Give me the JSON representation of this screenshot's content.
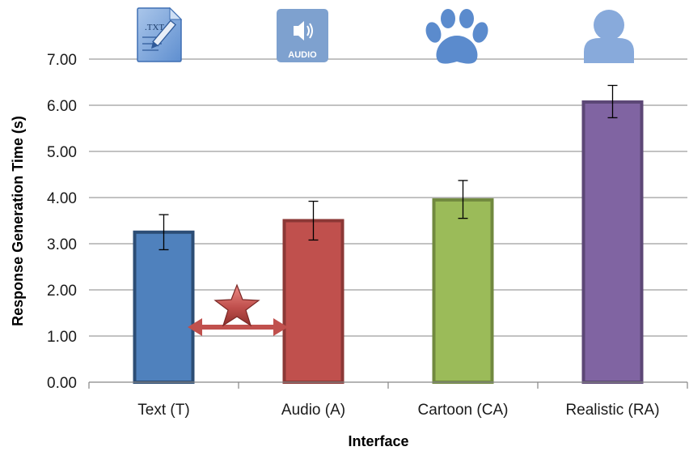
{
  "chart_data": {
    "type": "bar",
    "xlabel": "Interface",
    "ylabel": "Response Generation Time (s)",
    "ylim": [
      0,
      7
    ],
    "yticks": [
      "0.00",
      "1.00",
      "2.00",
      "3.00",
      "4.00",
      "5.00",
      "6.00",
      "7.00"
    ],
    "grid": "horizontal",
    "categories": [
      "Text (T)",
      "Audio (A)",
      "Cartoon (CA)",
      "Realistic (RA)"
    ],
    "values": [
      3.25,
      3.5,
      3.95,
      6.07
    ],
    "error_low": [
      2.87,
      3.08,
      3.55,
      5.73
    ],
    "error_high": [
      3.63,
      3.92,
      4.37,
      6.43
    ],
    "colors": [
      "#4f81bd",
      "#c0504d",
      "#9bbb59",
      "#8064a2"
    ],
    "border_colors": [
      "#2c4d75",
      "#8c3836",
      "#71893f",
      "#5c4776"
    ],
    "category_icons": [
      "text-file-icon",
      "audio-speaker-icon",
      "paw-icon",
      "person-icon"
    ],
    "annotation": {
      "type": "significance-star",
      "between": [
        "Text (T)",
        "Audio (A)"
      ],
      "color": "#c0504d"
    },
    "audio_icon_text": "AUDIO",
    "text_icon_text": ".TXT"
  }
}
